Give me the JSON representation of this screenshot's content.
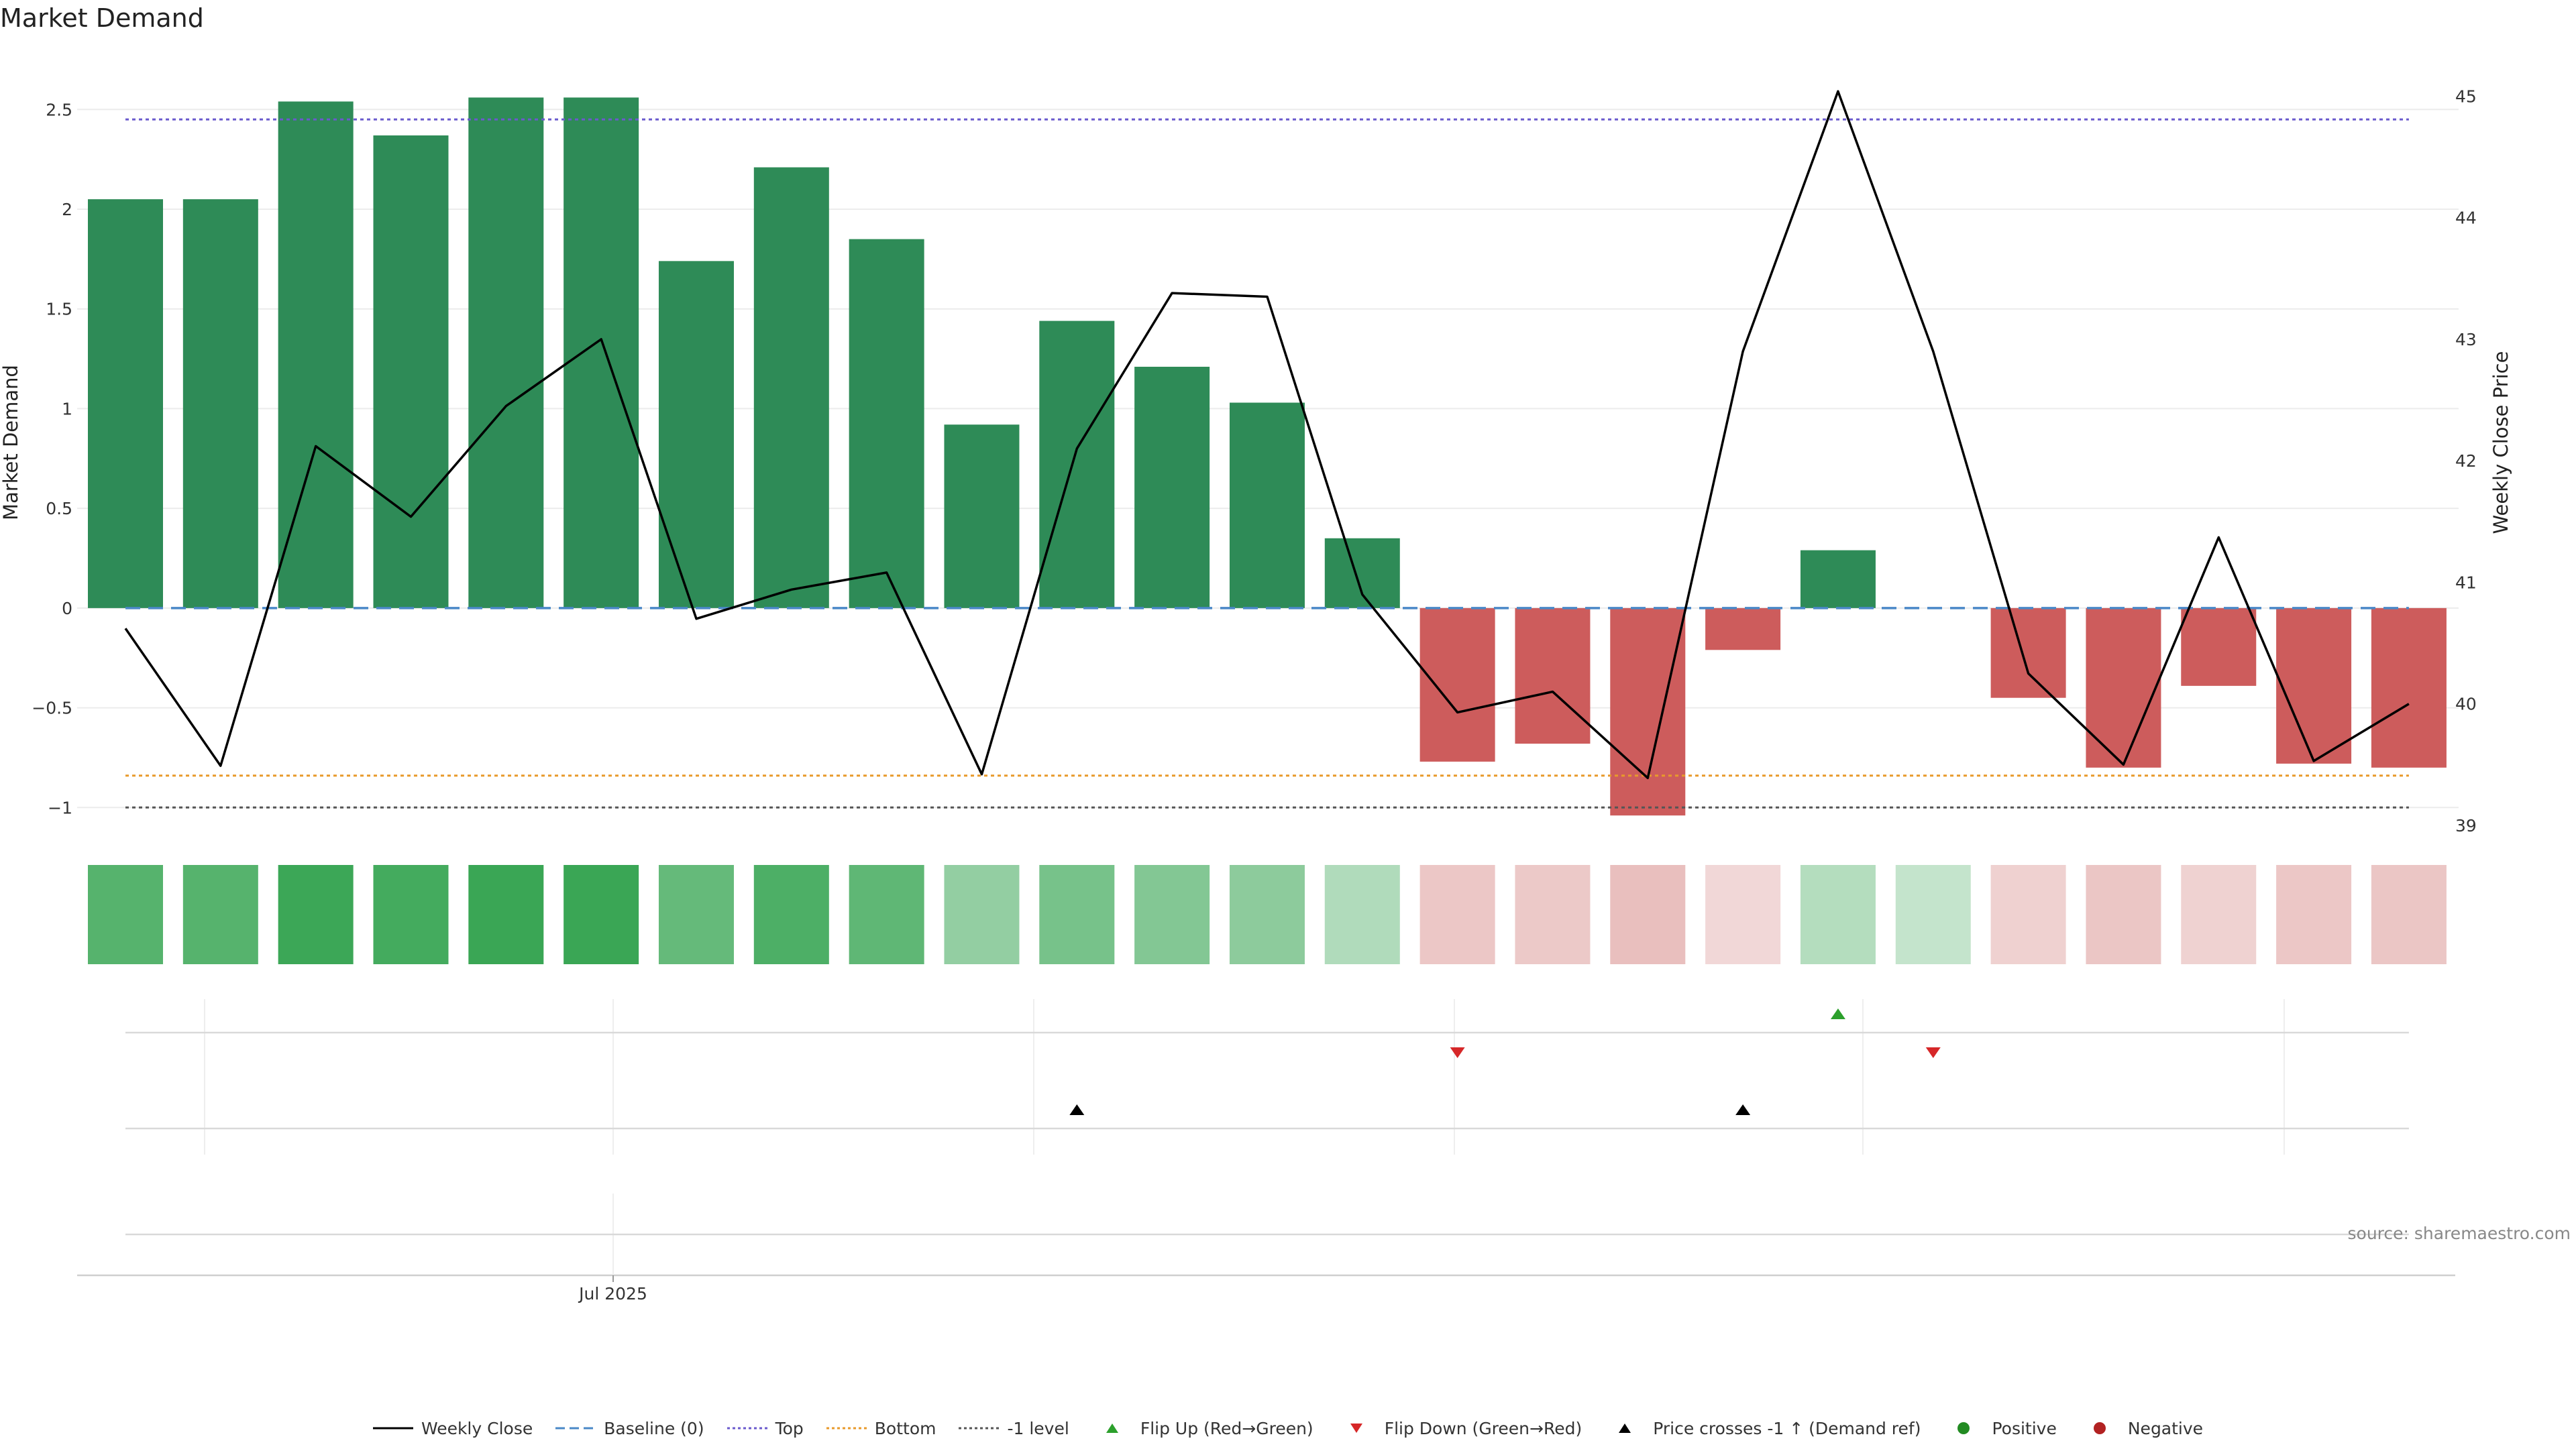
{
  "chart_data": {
    "type": "bar",
    "title": "Market Demand",
    "ylabel": "Market Demand",
    "y2label": "Weekly Close Price",
    "ylim": [
      -1.12,
      2.78
    ],
    "y2lim": [
      38.95,
      45.35
    ],
    "yticks": [
      -1,
      -0.5,
      0,
      0.5,
      1,
      1.5,
      2,
      2.5
    ],
    "ytick_labels": [
      "−1",
      "−0.5",
      "0",
      "0.5",
      "1",
      "1.5",
      "2",
      "2.5"
    ],
    "y2ticks": [
      39,
      40,
      41,
      42,
      43,
      44,
      45
    ],
    "xtick_labels": [
      "Jul 2025"
    ],
    "demand": [
      2.05,
      2.05,
      2.54,
      2.37,
      2.56,
      2.56,
      1.74,
      2.21,
      1.85,
      0.92,
      1.44,
      1.21,
      1.03,
      0.35,
      -0.77,
      -0.68,
      -1.04,
      -0.21,
      0.29,
      0.0,
      -0.45,
      -0.8,
      -0.39,
      -0.78,
      -0.8
    ],
    "close": [
      40.62,
      39.49,
      42.12,
      41.54,
      42.45,
      43.0,
      40.7,
      40.94,
      41.08,
      39.42,
      42.1,
      43.38,
      43.35,
      40.9,
      39.93,
      40.1,
      39.39,
      42.9,
      45.04,
      42.9,
      40.25,
      39.5,
      41.37,
      39.53,
      40.0
    ],
    "levels": {
      "baseline": 0,
      "top": 2.45,
      "bottom": -0.84,
      "minus_one": -1
    },
    "flip_up_index": [
      18
    ],
    "flip_down_index": [
      14,
      19
    ],
    "price_cross_index": [
      10,
      17
    ],
    "colors": {
      "positive": "#2e8b57",
      "negative": "#cd5c5c",
      "heat_positive": "#3aa655",
      "heat_negative": "#d9918f",
      "close": "#000000",
      "baseline": "#4a88c7",
      "top": "#6a5acd",
      "bottom": "#e89a2b",
      "minus_one": "#555555",
      "flip_up": "#2ca02c",
      "flip_down": "#d62728",
      "price_cross": "#000000",
      "positive_dot": "#228b22",
      "negative_dot": "#b22222"
    },
    "source": "source: sharemaestro.com"
  },
  "legend": [
    {
      "label": "Weekly Close",
      "symbol": "line-solid",
      "color": "#000000"
    },
    {
      "label": "Baseline (0)",
      "symbol": "line-dashed",
      "color": "#4a88c7"
    },
    {
      "label": "Top",
      "symbol": "line-dotted",
      "color": "#6a5acd"
    },
    {
      "label": "Bottom",
      "symbol": "line-dotted",
      "color": "#e89a2b"
    },
    {
      "label": "-1 level",
      "symbol": "line-dotted",
      "color": "#555555"
    },
    {
      "label": "Flip Up (Red→Green)",
      "symbol": "triangle-up",
      "color": "#2ca02c"
    },
    {
      "label": "Flip Down (Green→Red)",
      "symbol": "triangle-down",
      "color": "#d62728"
    },
    {
      "label": "Price crosses -1 ↑ (Demand ref)",
      "symbol": "triangle-up",
      "color": "#000000"
    },
    {
      "label": "Positive",
      "symbol": "dot",
      "color": "#228b22"
    },
    {
      "label": "Negative",
      "symbol": "dot",
      "color": "#b22222"
    }
  ]
}
